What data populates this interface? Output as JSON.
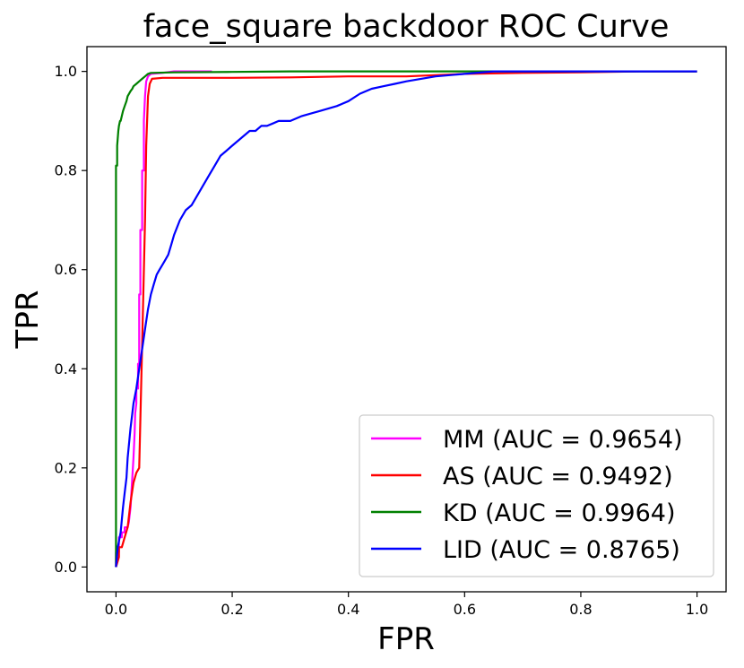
{
  "chart_data": {
    "type": "line",
    "title": "face_square backdoor ROC Curve",
    "xlabel": "FPR",
    "ylabel": "TPR",
    "xlim": [
      -0.05,
      1.05
    ],
    "ylim": [
      -0.05,
      1.05
    ],
    "xticks": [
      "0.0",
      "0.2",
      "0.4",
      "0.6",
      "0.8",
      "1.0"
    ],
    "yticks": [
      "0.0",
      "0.2",
      "0.4",
      "0.6",
      "0.8",
      "1.0"
    ],
    "grid": false,
    "legend_position": "lower-right",
    "series": [
      {
        "name": "MM (AUC = 0.9654)",
        "color": "#ff00ff",
        "x": [
          0.0,
          0.0,
          0.005,
          0.005,
          0.01,
          0.01,
          0.015,
          0.015,
          0.02,
          0.022,
          0.025,
          0.028,
          0.03,
          0.032,
          0.033,
          0.035,
          0.035,
          0.038,
          0.038,
          0.04,
          0.04,
          0.042,
          0.042,
          0.045,
          0.045,
          0.048,
          0.048,
          0.05,
          0.052,
          0.055,
          0.06,
          0.08,
          0.1,
          0.12,
          0.15,
          0.165
        ],
        "y": [
          0.0,
          0.03,
          0.03,
          0.06,
          0.06,
          0.07,
          0.07,
          0.08,
          0.08,
          0.09,
          0.12,
          0.18,
          0.22,
          0.27,
          0.31,
          0.33,
          0.36,
          0.36,
          0.41,
          0.41,
          0.55,
          0.55,
          0.68,
          0.68,
          0.8,
          0.8,
          0.9,
          0.95,
          0.98,
          0.99,
          0.995,
          0.997,
          1.0,
          1.0,
          1.0,
          1.0
        ]
      },
      {
        "name": "AS (AUC = 0.9492)",
        "color": "#ff0000",
        "x": [
          0.0,
          0.005,
          0.005,
          0.01,
          0.015,
          0.02,
          0.025,
          0.03,
          0.035,
          0.04,
          0.045,
          0.05,
          0.052,
          0.055,
          0.058,
          0.06,
          0.062,
          0.08,
          0.1,
          0.2,
          0.3,
          0.4,
          0.45,
          0.5,
          0.6,
          0.7,
          0.8,
          0.9,
          1.0
        ],
        "y": [
          0.0,
          0.02,
          0.04,
          0.04,
          0.06,
          0.08,
          0.13,
          0.17,
          0.19,
          0.2,
          0.45,
          0.7,
          0.85,
          0.95,
          0.975,
          0.98,
          0.985,
          0.987,
          0.987,
          0.987,
          0.988,
          0.99,
          0.99,
          0.99,
          0.995,
          0.997,
          0.998,
          1.0,
          1.0
        ]
      },
      {
        "name": "KD (AUC = 0.9964)",
        "color": "#008000",
        "x": [
          0.0,
          0.0,
          0.002,
          0.002,
          0.004,
          0.005,
          0.007,
          0.008,
          0.01,
          0.012,
          0.015,
          0.018,
          0.02,
          0.025,
          0.028,
          0.03,
          0.035,
          0.04,
          0.045,
          0.05,
          0.055,
          0.06,
          0.1,
          0.2,
          0.3,
          0.4,
          0.5,
          0.6,
          0.7,
          0.8,
          0.9,
          1.0
        ],
        "y": [
          0.0,
          0.81,
          0.81,
          0.85,
          0.88,
          0.89,
          0.9,
          0.9,
          0.91,
          0.92,
          0.93,
          0.94,
          0.95,
          0.96,
          0.965,
          0.97,
          0.975,
          0.98,
          0.985,
          0.99,
          0.995,
          0.997,
          0.998,
          0.999,
          1.0,
          1.0,
          1.0,
          1.0,
          1.0,
          1.0,
          1.0,
          1.0
        ]
      },
      {
        "name": "LID (AUC = 0.8765)",
        "color": "#0000ff",
        "x": [
          0.0,
          0.003,
          0.008,
          0.012,
          0.015,
          0.018,
          0.02,
          0.025,
          0.028,
          0.03,
          0.035,
          0.04,
          0.045,
          0.05,
          0.055,
          0.06,
          0.065,
          0.07,
          0.075,
          0.08,
          0.085,
          0.09,
          0.095,
          0.1,
          0.11,
          0.12,
          0.13,
          0.14,
          0.15,
          0.16,
          0.17,
          0.18,
          0.19,
          0.2,
          0.21,
          0.22,
          0.23,
          0.24,
          0.25,
          0.26,
          0.27,
          0.28,
          0.3,
          0.32,
          0.35,
          0.38,
          0.4,
          0.42,
          0.44,
          0.46,
          0.48,
          0.5,
          0.55,
          0.6,
          0.65,
          0.7,
          0.8,
          0.9,
          1.0
        ],
        "y": [
          0.0,
          0.04,
          0.07,
          0.12,
          0.15,
          0.18,
          0.22,
          0.28,
          0.31,
          0.33,
          0.36,
          0.4,
          0.44,
          0.48,
          0.52,
          0.55,
          0.57,
          0.59,
          0.6,
          0.61,
          0.62,
          0.63,
          0.65,
          0.67,
          0.7,
          0.72,
          0.73,
          0.75,
          0.77,
          0.79,
          0.81,
          0.83,
          0.84,
          0.85,
          0.86,
          0.87,
          0.88,
          0.88,
          0.89,
          0.89,
          0.895,
          0.9,
          0.9,
          0.91,
          0.92,
          0.93,
          0.94,
          0.955,
          0.965,
          0.97,
          0.975,
          0.98,
          0.99,
          0.995,
          1.0,
          1.0,
          1.0,
          1.0,
          1.0
        ]
      }
    ]
  }
}
